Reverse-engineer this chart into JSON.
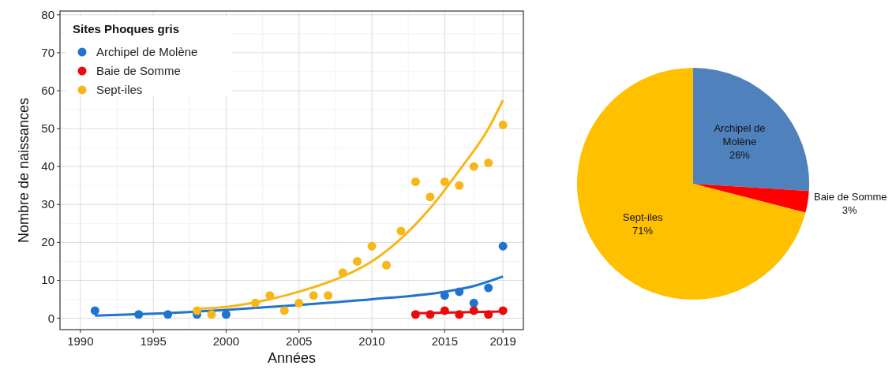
{
  "chart_data": [
    {
      "type": "scatter",
      "xlabel": "Années",
      "ylabel": "Nombre de naissances",
      "legend_title": "Sites Phoques gris",
      "legend": "top left",
      "grid": true,
      "marker": "circle",
      "xlim": [
        1988.6,
        2020.4
      ],
      "xticks": [
        1990,
        1995,
        2000,
        2005,
        2010,
        2015,
        2019
      ],
      "ylim": [
        -3,
        81
      ],
      "yticks": [
        0,
        10,
        20,
        30,
        40,
        50,
        60,
        70,
        80
      ],
      "series": [
        {
          "name": "Archipel de Molène",
          "color": "#1f74d0",
          "x": [
            1991,
            1994,
            1996,
            1998,
            2000,
            2015,
            2016,
            2017,
            2018,
            2019
          ],
          "values": [
            2,
            1,
            1,
            1,
            1,
            6,
            7,
            4,
            8,
            19
          ]
        },
        {
          "name": "Baie de Somme",
          "color": "#ec0a0a",
          "x": [
            2013,
            2014,
            2015,
            2016,
            2017,
            2018,
            2019
          ],
          "values": [
            1,
            1,
            2,
            1,
            2,
            1,
            2
          ]
        },
        {
          "name": "Sept-iles",
          "color": "#f7b718",
          "x": [
            1998,
            1999,
            2002,
            2003,
            2004,
            2005,
            2006,
            2007,
            2008,
            2009,
            2010,
            2011,
            2012,
            2013,
            2014,
            2015,
            2016,
            2017,
            2018,
            2019
          ],
          "values": [
            2,
            1,
            4,
            6,
            2,
            4,
            6,
            6,
            12,
            15,
            19,
            14,
            23,
            36,
            32,
            36,
            35,
            40,
            41,
            51
          ]
        },
        {
          "type": "line",
          "marker": "none",
          "color": "#1f74d0",
          "x": [
            1991,
            1995,
            2000,
            2005,
            2010,
            2015,
            2017,
            2019
          ],
          "values": [
            0.7,
            1.2,
            2.2,
            3.5,
            5,
            7,
            8.5,
            11
          ]
        },
        {
          "type": "line",
          "marker": "none",
          "color": "#ec0a0a",
          "x": [
            2013,
            2019
          ],
          "values": [
            1.3,
            1.8
          ]
        },
        {
          "type": "line",
          "marker": "none",
          "color": "#f7b718",
          "x": [
            1998,
            2000,
            2003,
            2005,
            2008,
            2010,
            2012,
            2014,
            2016,
            2018,
            2019
          ],
          "values": [
            2.5,
            3,
            5,
            7,
            11,
            15,
            21,
            29,
            39,
            50,
            57.5
          ]
        }
      ]
    },
    {
      "type": "pie",
      "categories": [
        "Archipel de Molène",
        "Baie de Somme",
        "Sept-iles"
      ],
      "values": [
        26,
        3,
        71
      ],
      "colors": [
        "#4f81bd",
        "#ff0000",
        "#ffc000"
      ],
      "value_labels": [
        "26%",
        "3%",
        "71%"
      ]
    }
  ]
}
